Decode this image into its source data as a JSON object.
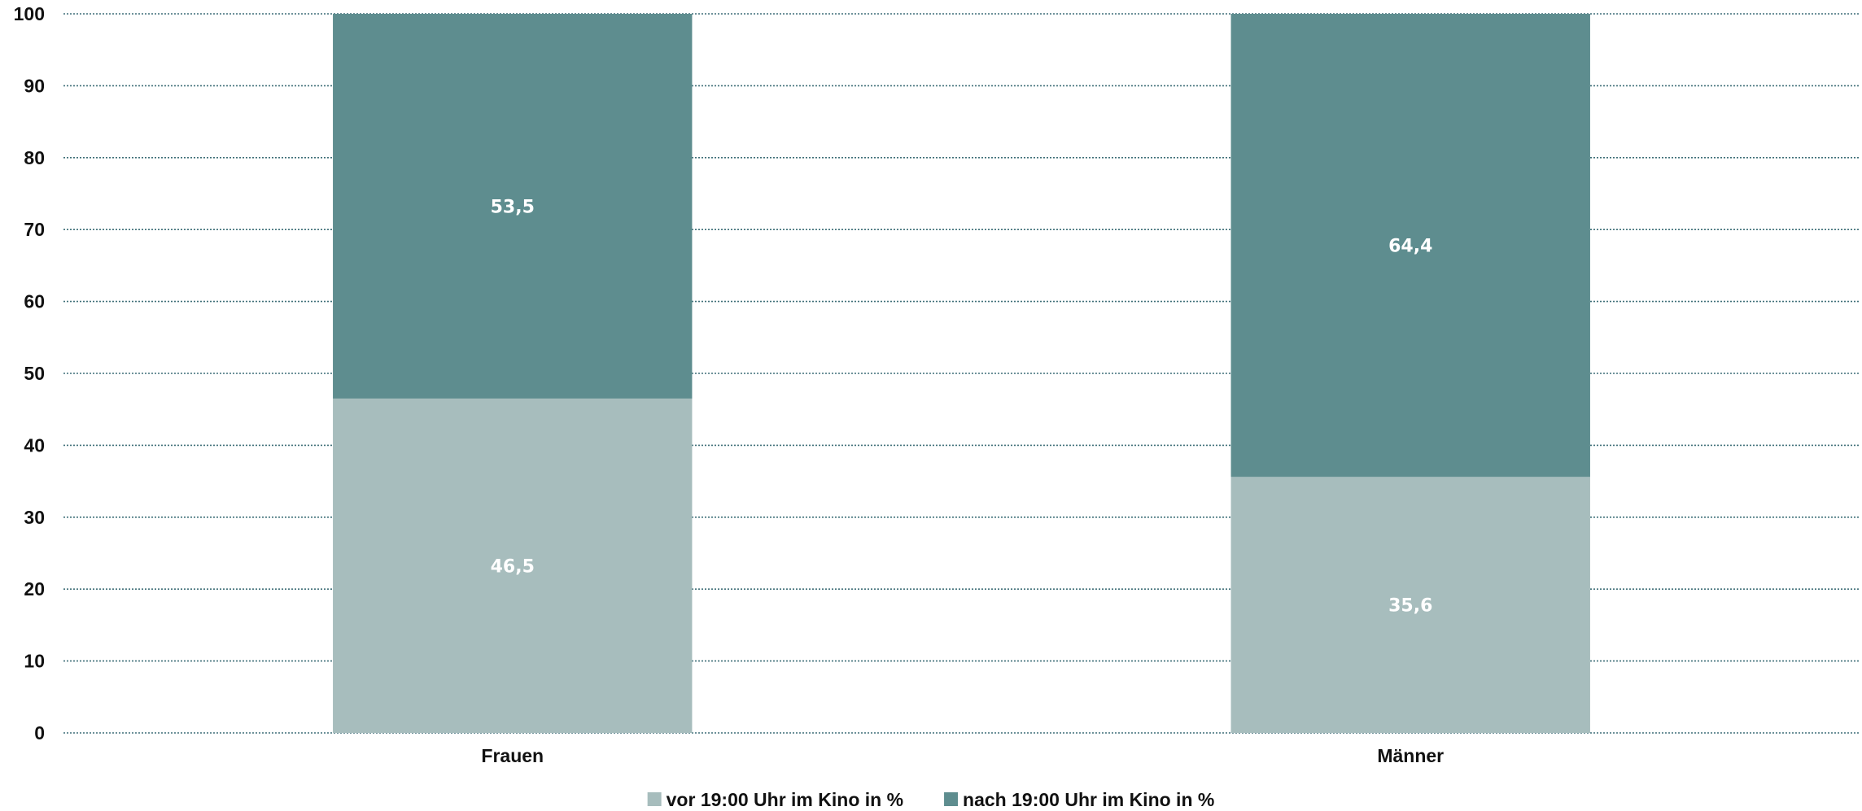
{
  "chart_data": {
    "type": "bar",
    "stacked": true,
    "categories": [
      "Frauen",
      "Männer"
    ],
    "series": [
      {
        "name": "vor 19:00 Uhr im Kino in %",
        "values": [
          46.5,
          35.6
        ],
        "labels": [
          "46,5",
          "35,6"
        ],
        "color": "#a7bdbd"
      },
      {
        "name": "nach 19:00 Uhr im Kino in %",
        "values": [
          53.5,
          64.4
        ],
        "labels": [
          "53,5",
          "64,4"
        ],
        "color": "#5e8d8f"
      }
    ],
    "ylim": [
      0,
      100
    ],
    "yticks": [
      "0",
      "10",
      "20",
      "30",
      "40",
      "50",
      "60",
      "70",
      "80",
      "90",
      "100"
    ],
    "grid": true,
    "gridline_color": "#3f6f78",
    "legend_position": "bottom"
  }
}
